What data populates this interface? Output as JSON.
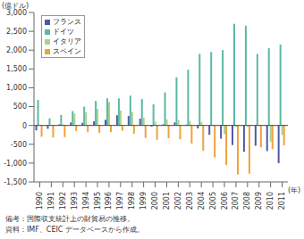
{
  "chart_data": {
    "type": "bar",
    "y_label": "(億ドル)",
    "x_label": "(年)",
    "notes": [
      "備考：国際収支統計上の財貿易の推移。",
      "資料：IMF、CEIC データベースから作成。"
    ],
    "categories": [
      "1990",
      "1991",
      "1992",
      "1993",
      "1994",
      "1995",
      "1996",
      "1997",
      "1998",
      "1999",
      "2000",
      "2001",
      "2002",
      "2003",
      "2004",
      "2005",
      "2006",
      "2007",
      "2008",
      "2009",
      "2010",
      "2011"
    ],
    "series": [
      {
        "name": "フランス",
        "color": "#4f5aa6",
        "values": [
          -130,
          -90,
          30,
          80,
          70,
          110,
          150,
          270,
          250,
          180,
          -30,
          30,
          80,
          20,
          -80,
          -250,
          -350,
          -520,
          -700,
          -540,
          -680,
          -1000
        ]
      },
      {
        "name": "ドイツ",
        "color": "#5bb8a4",
        "values": [
          680,
          190,
          280,
          380,
          500,
          650,
          720,
          720,
          790,
          700,
          560,
          880,
          1280,
          1480,
          1900,
          1950,
          2000,
          2700,
          2650,
          1900,
          2050,
          2150
        ]
      },
      {
        "name": "イタリア",
        "color": "#a9d18e",
        "values": [
          10,
          0,
          30,
          320,
          350,
          440,
          620,
          400,
          360,
          210,
          100,
          160,
          150,
          120,
          90,
          -10,
          -230,
          -30,
          -30,
          -10,
          -430,
          -250
        ]
      },
      {
        "name": "スペイン",
        "color": "#f0a23c",
        "values": [
          -300,
          -320,
          -310,
          -150,
          -180,
          -200,
          -180,
          -140,
          -220,
          -330,
          -380,
          -340,
          -370,
          -480,
          -670,
          -850,
          -1050,
          -1300,
          -1280,
          -580,
          -630,
          -530
        ]
      }
    ],
    "ylim": [
      -1500,
      3000
    ],
    "yticks": [
      {
        "value": -1500,
        "label": "-1,500"
      },
      {
        "value": -1000,
        "label": "-1,000"
      },
      -500,
      0,
      500,
      {
        "value": 1000,
        "label": "1,000"
      },
      {
        "value": 1500,
        "label": "1,500"
      },
      {
        "value": 2000,
        "label": "2,000"
      },
      {
        "value": 2500,
        "label": "2,500"
      },
      {
        "value": 3000,
        "label": "3,000"
      }
    ],
    "grid": false,
    "legend": "top-left"
  }
}
